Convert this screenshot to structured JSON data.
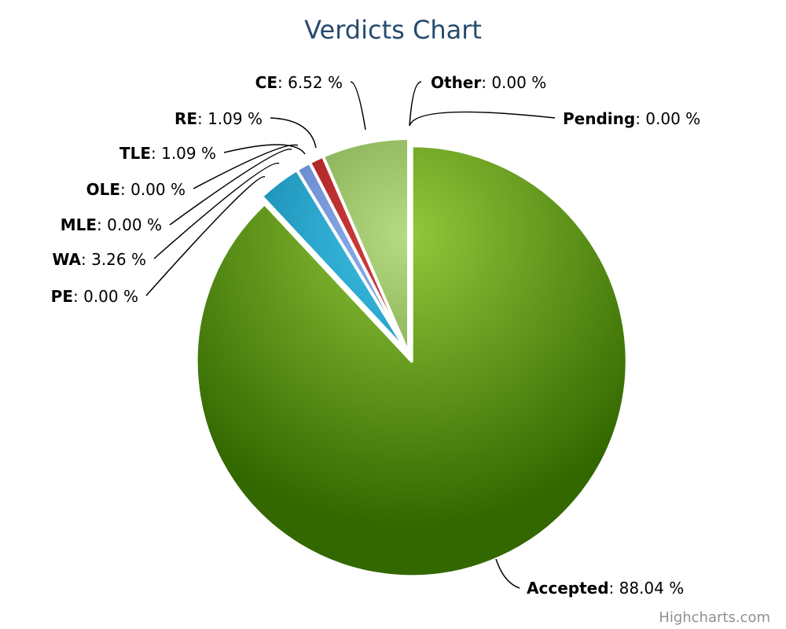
{
  "credits": "Highcharts.com",
  "chart_data": {
    "type": "pie",
    "title": "Verdicts Chart",
    "value_suffix": " %",
    "slices": [
      {
        "name": "Accepted",
        "value": 88.04,
        "color": "#6a9f13",
        "sliced": true
      },
      {
        "name": "PE",
        "value": 0.0,
        "color": "#1f8fb0"
      },
      {
        "name": "WA",
        "value": 3.26,
        "color": "#1a9ec4"
      },
      {
        "name": "MLE",
        "value": 0.0,
        "color": "#2a6fb5"
      },
      {
        "name": "OLE",
        "value": 0.0,
        "color": "#3b5fae"
      },
      {
        "name": "TLE",
        "value": 1.09,
        "color": "#6d8fd0"
      },
      {
        "name": "RE",
        "value": 1.09,
        "color": "#b01c1c"
      },
      {
        "name": "CE",
        "value": 6.52,
        "color": "#8db45a"
      },
      {
        "name": "Other",
        "value": 0.0,
        "color": "#7a9e3e"
      },
      {
        "name": "Pending",
        "value": 0.0,
        "color": "#7a9e3e"
      }
    ]
  }
}
